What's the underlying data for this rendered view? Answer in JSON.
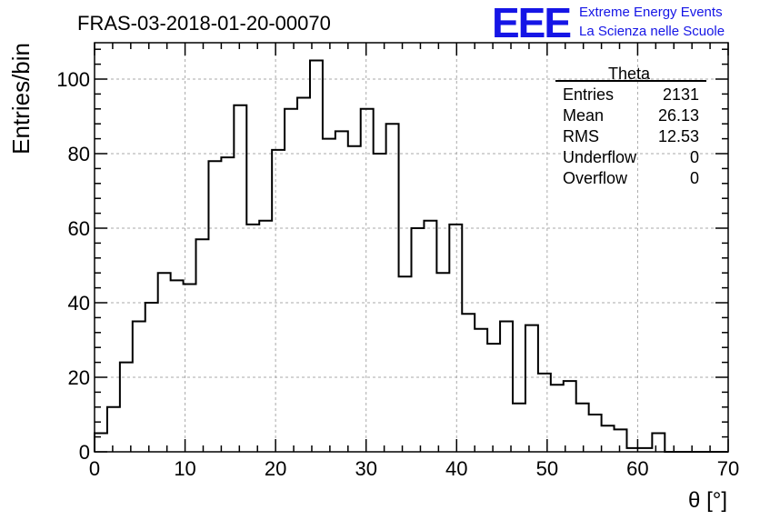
{
  "header": {
    "run_title": "FRAS-03-2018-01-20-00070",
    "logo_text": "EEE",
    "logo_line1": "Extreme Energy Events",
    "logo_line2": "La Scienza nelle Scuole",
    "logo_color": "#1515e6"
  },
  "stats_box": {
    "title": "Theta",
    "rows": [
      {
        "label": "Entries",
        "value": "2131"
      },
      {
        "label": "Mean",
        "value": "26.13"
      },
      {
        "label": "RMS",
        "value": "12.53"
      },
      {
        "label": "Underflow",
        "value": "0"
      },
      {
        "label": "Overflow",
        "value": "0"
      }
    ]
  },
  "chart_data": {
    "type": "bar",
    "style": "step-histogram",
    "xlabel": "θ [°]",
    "ylabel": "Entries/bin",
    "xlim": [
      0,
      70
    ],
    "ylim": [
      0,
      110
    ],
    "bin_width": 1.4,
    "bin_start": 0,
    "x_ticks": [
      0,
      10,
      20,
      30,
      40,
      50,
      60,
      70
    ],
    "y_ticks": [
      0,
      20,
      40,
      60,
      80,
      100
    ],
    "grid": true,
    "line_color": "#000000",
    "values": [
      5,
      12,
      24,
      35,
      40,
      48,
      46,
      45,
      57,
      78,
      79,
      93,
      61,
      62,
      81,
      92,
      95,
      105,
      84,
      86,
      82,
      92,
      80,
      88,
      47,
      60,
      62,
      48,
      61,
      37,
      33,
      29,
      35,
      13,
      34,
      21,
      18,
      19,
      13,
      10,
      7,
      6,
      1,
      1,
      5,
      0,
      0,
      0,
      0,
      0
    ]
  }
}
